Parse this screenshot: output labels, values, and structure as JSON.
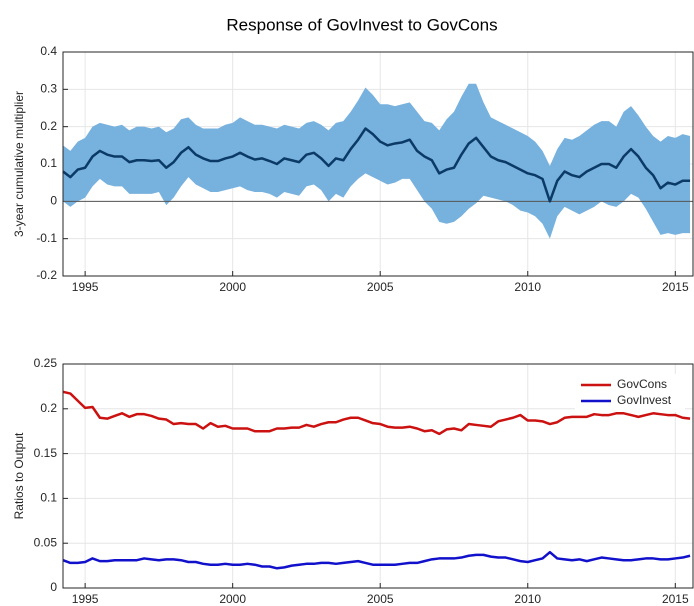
{
  "chart_data": [
    {
      "type": "line",
      "title": "Response of GovInvest to GovCons",
      "ylabel": "3-year cumulative multiplier",
      "x": [
        1994.25,
        1994.5,
        1994.75,
        1995,
        1995.25,
        1995.5,
        1995.75,
        1996,
        1996.25,
        1996.5,
        1996.75,
        1997,
        1997.25,
        1997.5,
        1997.75,
        1998,
        1998.25,
        1998.5,
        1998.75,
        1999,
        1999.25,
        1999.5,
        1999.75,
        2000,
        2000.25,
        2000.5,
        2000.75,
        2001,
        2001.25,
        2001.5,
        2001.75,
        2002,
        2002.25,
        2002.5,
        2002.75,
        2003,
        2003.25,
        2003.5,
        2003.75,
        2004,
        2004.25,
        2004.5,
        2004.75,
        2005,
        2005.25,
        2005.5,
        2005.75,
        2006,
        2006.25,
        2006.5,
        2006.75,
        2007,
        2007.25,
        2007.5,
        2007.75,
        2008,
        2008.25,
        2008.5,
        2008.75,
        2009,
        2009.25,
        2009.5,
        2009.75,
        2010,
        2010.25,
        2010.5,
        2010.75,
        2011,
        2011.25,
        2011.5,
        2011.75,
        2012,
        2012.25,
        2012.5,
        2012.75,
        2013,
        2013.25,
        2013.5,
        2013.75,
        2014,
        2014.25,
        2014.5,
        2014.75,
        2015,
        2015.25,
        2015.5
      ],
      "values": [
        0.08,
        0.065,
        0.085,
        0.09,
        0.12,
        0.135,
        0.125,
        0.12,
        0.12,
        0.105,
        0.11,
        0.11,
        0.108,
        0.11,
        0.09,
        0.105,
        0.13,
        0.145,
        0.125,
        0.115,
        0.108,
        0.108,
        0.115,
        0.12,
        0.13,
        0.12,
        0.112,
        0.115,
        0.108,
        0.1,
        0.115,
        0.11,
        0.105,
        0.125,
        0.13,
        0.115,
        0.095,
        0.115,
        0.11,
        0.14,
        0.165,
        0.195,
        0.18,
        0.16,
        0.15,
        0.155,
        0.158,
        0.165,
        0.135,
        0.12,
        0.11,
        0.075,
        0.085,
        0.09,
        0.125,
        0.155,
        0.17,
        0.145,
        0.12,
        0.11,
        0.105,
        0.095,
        0.085,
        0.075,
        0.07,
        0.06,
        0.0,
        0.055,
        0.08,
        0.07,
        0.065,
        0.08,
        0.09,
        0.1,
        0.1,
        0.09,
        0.12,
        0.14,
        0.12,
        0.09,
        0.07,
        0.035,
        0.05,
        0.045,
        0.055,
        0.055
      ],
      "upper": [
        0.15,
        0.135,
        0.16,
        0.17,
        0.2,
        0.21,
        0.205,
        0.2,
        0.205,
        0.19,
        0.2,
        0.2,
        0.195,
        0.2,
        0.185,
        0.195,
        0.22,
        0.225,
        0.205,
        0.195,
        0.195,
        0.195,
        0.205,
        0.21,
        0.225,
        0.215,
        0.205,
        0.205,
        0.2,
        0.195,
        0.205,
        0.2,
        0.195,
        0.21,
        0.215,
        0.205,
        0.19,
        0.21,
        0.215,
        0.24,
        0.27,
        0.305,
        0.285,
        0.26,
        0.26,
        0.255,
        0.26,
        0.265,
        0.24,
        0.215,
        0.21,
        0.19,
        0.22,
        0.24,
        0.28,
        0.315,
        0.315,
        0.265,
        0.225,
        0.215,
        0.205,
        0.195,
        0.185,
        0.175,
        0.16,
        0.135,
        0.095,
        0.14,
        0.17,
        0.165,
        0.175,
        0.19,
        0.205,
        0.215,
        0.215,
        0.2,
        0.24,
        0.255,
        0.23,
        0.2,
        0.175,
        0.16,
        0.175,
        0.17,
        0.18,
        0.175
      ],
      "lower": [
        0.0,
        -0.015,
        0.0,
        0.01,
        0.04,
        0.06,
        0.045,
        0.04,
        0.04,
        0.02,
        0.02,
        0.02,
        0.02,
        0.025,
        -0.01,
        0.01,
        0.04,
        0.065,
        0.045,
        0.035,
        0.025,
        0.025,
        0.03,
        0.035,
        0.04,
        0.03,
        0.025,
        0.025,
        0.02,
        0.01,
        0.025,
        0.02,
        0.015,
        0.04,
        0.045,
        0.03,
        0.0,
        0.02,
        0.01,
        0.04,
        0.06,
        0.075,
        0.065,
        0.055,
        0.045,
        0.05,
        0.06,
        0.06,
        0.03,
        0.0,
        -0.02,
        -0.055,
        -0.06,
        -0.055,
        -0.04,
        -0.02,
        -0.005,
        0.015,
        0.01,
        0.005,
        0.0,
        -0.01,
        -0.025,
        -0.03,
        -0.04,
        -0.06,
        -0.1,
        -0.04,
        -0.015,
        -0.025,
        -0.035,
        -0.025,
        -0.015,
        0.0,
        -0.01,
        -0.015,
        0.0,
        0.02,
        0.01,
        -0.02,
        -0.055,
        -0.09,
        -0.085,
        -0.09,
        -0.085,
        -0.085
      ],
      "color": "#0b3a66",
      "band_color": "#77b1de",
      "zero_line": true,
      "grid": true,
      "xlim": [
        1994.25,
        2015.6
      ],
      "xticks": [
        1995,
        2000,
        2005,
        2010,
        2015
      ],
      "ylim": [
        -0.2,
        0.4
      ],
      "yticks": [
        -0.2,
        -0.1,
        0,
        0.1,
        0.2,
        0.3,
        0.4
      ]
    },
    {
      "type": "line",
      "ylabel": "Ratios to Output",
      "x": [
        1994.25,
        1994.5,
        1994.75,
        1995,
        1995.25,
        1995.5,
        1995.75,
        1996,
        1996.25,
        1996.5,
        1996.75,
        1997,
        1997.25,
        1997.5,
        1997.75,
        1998,
        1998.25,
        1998.5,
        1998.75,
        1999,
        1999.25,
        1999.5,
        1999.75,
        2000,
        2000.25,
        2000.5,
        2000.75,
        2001,
        2001.25,
        2001.5,
        2001.75,
        2002,
        2002.25,
        2002.5,
        2002.75,
        2003,
        2003.25,
        2003.5,
        2003.75,
        2004,
        2004.25,
        2004.5,
        2004.75,
        2005,
        2005.25,
        2005.5,
        2005.75,
        2006,
        2006.25,
        2006.5,
        2006.75,
        2007,
        2007.25,
        2007.5,
        2007.75,
        2008,
        2008.25,
        2008.5,
        2008.75,
        2009,
        2009.25,
        2009.5,
        2009.75,
        2010,
        2010.25,
        2010.5,
        2010.75,
        2011,
        2011.25,
        2011.5,
        2011.75,
        2012,
        2012.25,
        2012.5,
        2012.75,
        2013,
        2013.25,
        2013.5,
        2013.75,
        2014,
        2014.25,
        2014.5,
        2014.75,
        2015,
        2015.25,
        2015.5
      ],
      "series": [
        {
          "name": "GovCons",
          "color": "#cc1111",
          "values": [
            0.219,
            0.217,
            0.209,
            0.201,
            0.202,
            0.19,
            0.189,
            0.192,
            0.195,
            0.191,
            0.194,
            0.194,
            0.192,
            0.189,
            0.188,
            0.183,
            0.184,
            0.183,
            0.183,
            0.178,
            0.184,
            0.18,
            0.181,
            0.178,
            0.178,
            0.178,
            0.175,
            0.175,
            0.175,
            0.178,
            0.178,
            0.179,
            0.179,
            0.182,
            0.18,
            0.183,
            0.185,
            0.185,
            0.188,
            0.19,
            0.19,
            0.187,
            0.184,
            0.183,
            0.18,
            0.179,
            0.179,
            0.18,
            0.178,
            0.175,
            0.176,
            0.172,
            0.177,
            0.178,
            0.176,
            0.183,
            0.182,
            0.181,
            0.18,
            0.186,
            0.188,
            0.19,
            0.193,
            0.187,
            0.187,
            0.186,
            0.183,
            0.185,
            0.19,
            0.191,
            0.191,
            0.191,
            0.194,
            0.193,
            0.193,
            0.195,
            0.195,
            0.193,
            0.191,
            0.193,
            0.195,
            0.194,
            0.193,
            0.193,
            0.19,
            0.189
          ]
        },
        {
          "name": "GovInvest",
          "color": "#1111cc",
          "values": [
            0.031,
            0.028,
            0.028,
            0.029,
            0.033,
            0.03,
            0.03,
            0.031,
            0.031,
            0.031,
            0.031,
            0.033,
            0.032,
            0.031,
            0.032,
            0.032,
            0.031,
            0.029,
            0.029,
            0.027,
            0.026,
            0.026,
            0.027,
            0.026,
            0.026,
            0.027,
            0.026,
            0.024,
            0.024,
            0.022,
            0.023,
            0.025,
            0.026,
            0.027,
            0.027,
            0.028,
            0.028,
            0.027,
            0.028,
            0.029,
            0.03,
            0.028,
            0.026,
            0.026,
            0.026,
            0.026,
            0.027,
            0.028,
            0.028,
            0.03,
            0.032,
            0.033,
            0.033,
            0.033,
            0.034,
            0.036,
            0.037,
            0.037,
            0.035,
            0.034,
            0.034,
            0.032,
            0.03,
            0.029,
            0.031,
            0.033,
            0.04,
            0.033,
            0.032,
            0.031,
            0.032,
            0.03,
            0.032,
            0.034,
            0.033,
            0.032,
            0.031,
            0.031,
            0.032,
            0.033,
            0.033,
            0.032,
            0.032,
            0.033,
            0.034,
            0.036
          ]
        }
      ],
      "legend": "upper right",
      "grid": true,
      "xlim": [
        1994.25,
        2015.6
      ],
      "xticks": [
        1995,
        2000,
        2005,
        2010,
        2015
      ],
      "ylim": [
        0,
        0.25
      ],
      "yticks": [
        0,
        0.05,
        0.1,
        0.15,
        0.2,
        0.25
      ]
    }
  ]
}
